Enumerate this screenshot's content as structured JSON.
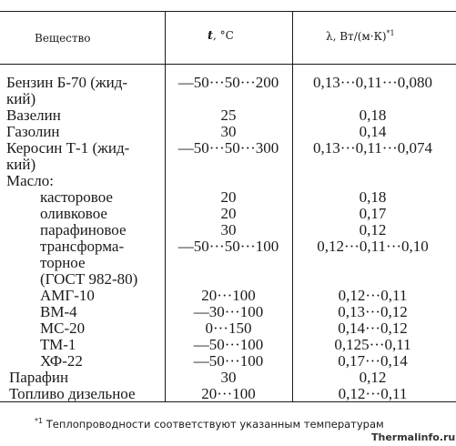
{
  "header": {
    "col1": "Вещество",
    "col2_symbol": "t",
    "col2_unit": ", °C",
    "col3_symbol": "λ",
    "col3_unit": ", Вт/(м·К)",
    "col3_note": "*1"
  },
  "rows": [
    {
      "name": "Бензин Б-70 (жид-",
      "t": "—50···50···200",
      "lambda": "0,13···0,11···0,080"
    },
    {
      "name": "кий)",
      "t": "",
      "lambda": ""
    },
    {
      "name": "Вазелин",
      "t": "25",
      "lambda": "0,18"
    },
    {
      "name": "Газолин",
      "t": "30",
      "lambda": "0,14"
    },
    {
      "name": "Керосин Т-1 (жид-",
      "t": "—50···50···300",
      "lambda": "0,13···0,11···0,074"
    },
    {
      "name": "кий)",
      "t": "",
      "lambda": ""
    },
    {
      "name": "Масло:",
      "t": "",
      "lambda": ""
    },
    {
      "name": "касторовое",
      "t": "20",
      "lambda": "0,18"
    },
    {
      "name": "оливковое",
      "t": "20",
      "lambda": "0,17"
    },
    {
      "name": "парафиновое",
      "t": "30",
      "lambda": "0,12"
    },
    {
      "name": "трансформа-",
      "t": "—50···50···100",
      "lambda": "0,12···0,11···0,10"
    },
    {
      "name": "торное",
      "t": "",
      "lambda": ""
    },
    {
      "name": "(ГОСТ 982-80)",
      "t": "",
      "lambda": ""
    },
    {
      "name": "АМГ-10",
      "t": "20···100",
      "lambda": "0,12···0,11"
    },
    {
      "name": "ВМ-4",
      "t": "—30···100",
      "lambda": "0,13···0,12"
    },
    {
      "name": "МС-20",
      "t": "0···150",
      "lambda": "0,14···0,12"
    },
    {
      "name": "ТМ-1",
      "t": "—50···100",
      "lambda": "0,125···0,11"
    },
    {
      "name": "ХФ-22",
      "t": "—50···100",
      "lambda": "0,17···0,14"
    },
    {
      "name": "Парафин",
      "t": "30",
      "lambda": "0,12"
    },
    {
      "name": "Топливо дизельное",
      "t": "20···100",
      "lambda": "0,12···0,11"
    }
  ],
  "footnote": {
    "mark": "*1",
    "text": "Теплопроводности соответствуют указанным температурам"
  },
  "watermark": "Thermalinfo.ru"
}
